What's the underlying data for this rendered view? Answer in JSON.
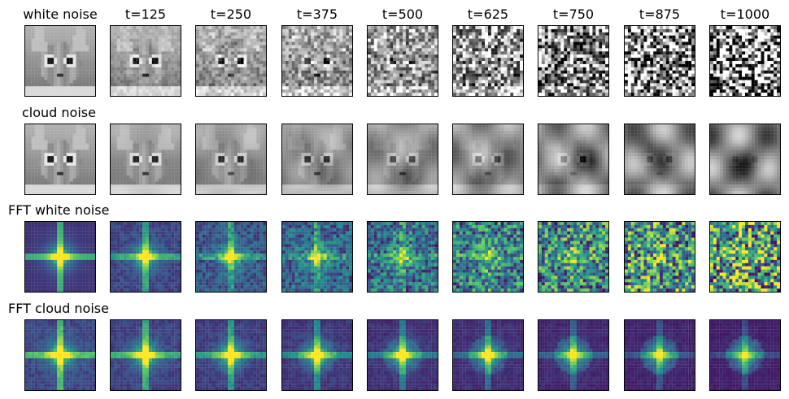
{
  "columns": [
    "white noise",
    "t=125",
    "t=250",
    "t=375",
    "t=500",
    "t=625",
    "t=750",
    "t=875",
    "t=1000"
  ],
  "rows": [
    {
      "key": "white",
      "label": "",
      "type": "image",
      "noise": "white"
    },
    {
      "key": "cloud",
      "label": "cloud noise",
      "type": "image",
      "noise": "cloud"
    },
    {
      "key": "fftwhite",
      "label": "FFT white noise",
      "type": "fft",
      "noise": "white"
    },
    {
      "key": "fftcloud",
      "label": "FFT cloud noise",
      "type": "fft",
      "noise": "cloud"
    }
  ],
  "colors": {
    "viridis_dark": "#440154",
    "viridis_mid": "#21918c",
    "viridis_bright": "#fde725"
  }
}
